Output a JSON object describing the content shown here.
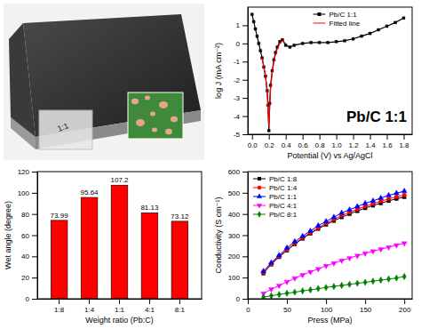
{
  "photo": {
    "label": "1:1"
  },
  "chart_data": [
    {
      "type": "line",
      "x_label": "Potential (V) vs Ag/AgCl",
      "y_label": "log J (mA cm⁻²)",
      "annotation": "Pb/C 1:1",
      "xlim": [
        -0.05,
        1.9
      ],
      "xticks": [
        {
          "value": 0,
          "label": "0.0"
        },
        0.2,
        0.4,
        0.6,
        0.8,
        {
          "value": 1,
          "label": "1.0"
        },
        1.2,
        1.4,
        1.6,
        1.8
      ],
      "ylim": [
        -5,
        2
      ],
      "yticks": [
        -5,
        -4,
        -3,
        -2,
        -1,
        0,
        1
      ],
      "legend": "upper center",
      "series": [
        {
          "name": "Pb/C 1:1",
          "color": "#000000",
          "marker": "square",
          "line_style": "solid",
          "x": [
            0.0,
            0.02,
            0.04,
            0.06,
            0.08,
            0.1,
            0.12,
            0.14,
            0.16,
            0.18,
            0.19,
            0.2,
            0.21,
            0.22,
            0.24,
            0.26,
            0.28,
            0.3,
            0.33,
            0.36,
            0.4,
            0.45,
            0.5,
            0.6,
            0.7,
            0.8,
            0.9,
            1.0,
            1.1,
            1.2,
            1.3,
            1.4,
            1.5,
            1.6,
            1.7,
            1.8
          ],
          "values": [
            1.6,
            1.2,
            0.8,
            0.4,
            0.0,
            -0.4,
            -0.8,
            -1.3,
            -1.8,
            -2.6,
            -3.4,
            -4.8,
            -3.3,
            -2.3,
            -1.5,
            -0.9,
            -0.5,
            -0.2,
            0.1,
            0.2,
            -0.1,
            -0.2,
            -0.1,
            0.0,
            0.05,
            0.05,
            0.05,
            0.1,
            0.15,
            0.25,
            0.4,
            0.55,
            0.75,
            0.95,
            1.15,
            1.4
          ]
        },
        {
          "name": "Fitted line",
          "color": "#ff0000",
          "marker": "none",
          "line_style": "solid",
          "x": [
            0.12,
            0.14,
            0.16,
            0.18,
            0.2,
            0.22,
            0.24,
            0.26,
            0.28,
            0.3,
            0.33,
            0.36,
            0.4
          ],
          "values": [
            -0.8,
            -1.3,
            -1.8,
            -2.7,
            -4.6,
            -2.5,
            -1.6,
            -1.0,
            -0.6,
            -0.3,
            0.0,
            0.15,
            0.0
          ]
        }
      ]
    },
    {
      "type": "bar",
      "x_label": "Weight ratio (Pb:C)",
      "y_label": "Wet angle (degree)",
      "categories": [
        "1:8",
        "1:4",
        "1:1",
        "4:1",
        "8:1"
      ],
      "values": [
        73.99,
        95.64,
        107.2,
        81.13,
        73.12
      ],
      "color": "#ff0000",
      "data_labels": true,
      "ylim": [
        0,
        120
      ],
      "yticks": [
        0,
        20,
        40,
        60,
        80,
        100,
        120
      ]
    },
    {
      "type": "line",
      "x_label": "Press (MPa)",
      "y_label": "Conductivity (S cm⁻¹)",
      "xlim": [
        0,
        210
      ],
      "xticks": [
        0,
        50,
        100,
        150,
        200
      ],
      "ylim": [
        0,
        600
      ],
      "yticks": [
        0,
        100,
        200,
        300,
        400,
        500,
        600
      ],
      "legend": "upper left",
      "series": [
        {
          "name": "Pb/C 1:8",
          "color": "#000000",
          "marker": "square",
          "line_style": "solid",
          "x": [
            20,
            30,
            40,
            50,
            60,
            70,
            80,
            90,
            100,
            110,
            120,
            130,
            140,
            150,
            160,
            170,
            180,
            190,
            200
          ],
          "values": [
            120,
            162,
            197,
            228,
            258,
            284,
            308,
            330,
            350,
            368,
            385,
            400,
            414,
            428,
            440,
            451,
            462,
            472,
            480
          ]
        },
        {
          "name": "Pb/C 1:4",
          "color": "#ff0000",
          "marker": "circle",
          "line_style": "solid",
          "x": [
            20,
            30,
            40,
            50,
            60,
            70,
            80,
            90,
            100,
            110,
            120,
            130,
            140,
            150,
            160,
            170,
            180,
            190,
            200
          ],
          "values": [
            125,
            165,
            200,
            232,
            262,
            288,
            312,
            335,
            356,
            375,
            393,
            408,
            422,
            436,
            448,
            460,
            471,
            481,
            490
          ]
        },
        {
          "name": "Pb/C 1:1",
          "color": "#0000ff",
          "marker": "triangle-up",
          "line_style": "solid",
          "x": [
            20,
            30,
            40,
            50,
            60,
            70,
            80,
            90,
            100,
            110,
            120,
            130,
            140,
            150,
            160,
            170,
            180,
            190,
            200
          ],
          "values": [
            130,
            170,
            205,
            240,
            270,
            295,
            320,
            345,
            365,
            385,
            405,
            420,
            435,
            450,
            462,
            475,
            488,
            498,
            508
          ]
        },
        {
          "name": "Pb/C 4:1",
          "color": "#ff00ff",
          "marker": "triangle-down",
          "line_style": "solid",
          "x": [
            20,
            30,
            40,
            50,
            60,
            70,
            80,
            90,
            100,
            110,
            120,
            130,
            140,
            150,
            160,
            170,
            180,
            190,
            200
          ],
          "values": [
            25,
            45,
            62,
            80,
            97,
            112,
            127,
            141,
            155,
            168,
            180,
            192,
            203,
            214,
            224,
            234,
            243,
            253,
            262
          ]
        },
        {
          "name": "Pb/C 8:1",
          "color": "#008000",
          "marker": "diamond",
          "line_style": "solid",
          "x": [
            20,
            30,
            40,
            50,
            60,
            70,
            80,
            90,
            100,
            110,
            120,
            130,
            140,
            150,
            160,
            170,
            180,
            190,
            200
          ],
          "values": [
            8,
            14,
            20,
            26,
            31,
            37,
            42,
            48,
            53,
            58,
            63,
            68,
            73,
            78,
            83,
            88,
            93,
            98,
            105
          ]
        }
      ]
    }
  ]
}
